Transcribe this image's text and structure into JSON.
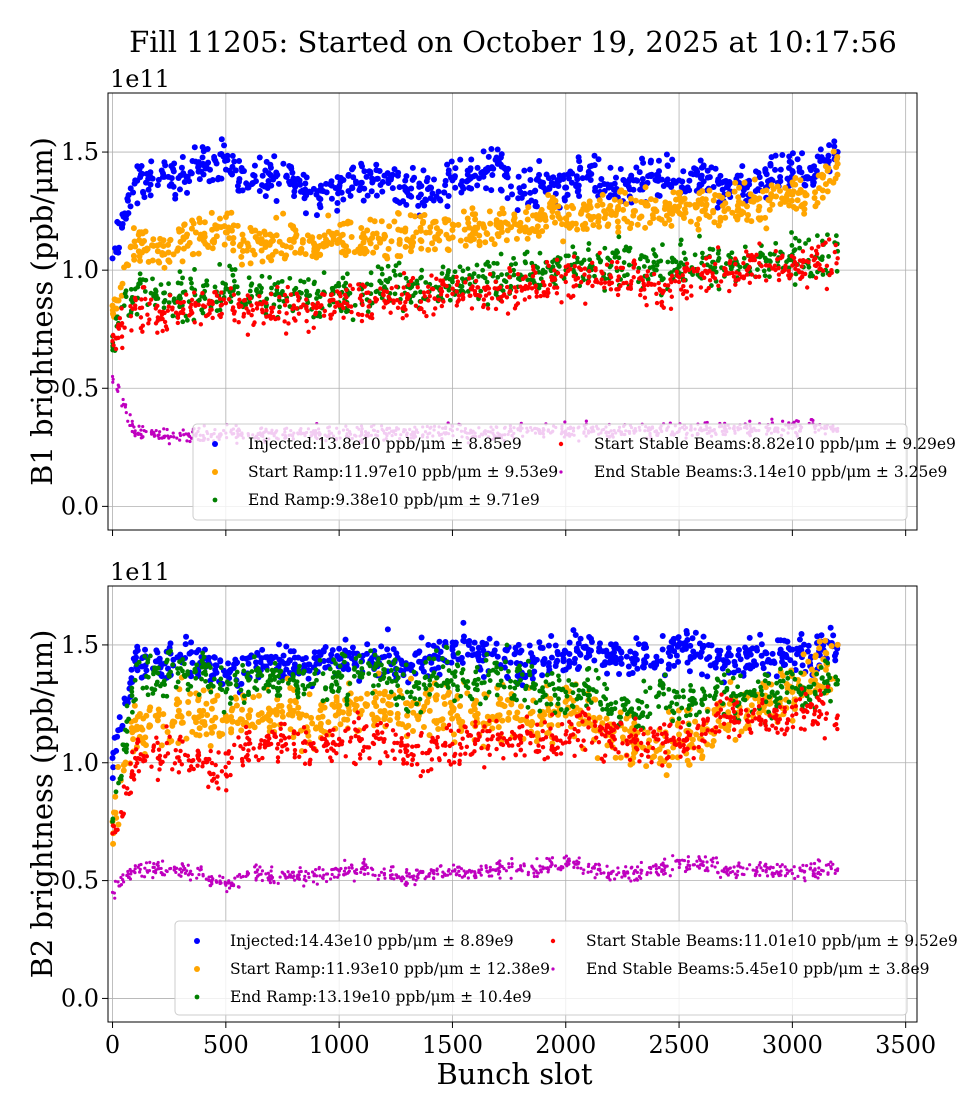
{
  "title": "Fill 11205: Started on October 19, 2025 at 10:17:56",
  "colors": {
    "Injected": "#0000ff",
    "Start Ramp": "#ffa500",
    "End Ramp": "#008000",
    "Start Stable Beams": "#ff0000",
    "End Stable Beams": "#bf00bf"
  },
  "chart_data": [
    {
      "type": "scatter",
      "ylabel": "B1 brightness (ppb/μm)",
      "xlabel": "",
      "y_offset_label": "1e11",
      "xlim": [
        -20,
        3550
      ],
      "ylim": [
        -0.1,
        1.75
      ],
      "xticks": [
        "0",
        "500",
        "1000",
        "1500",
        "2000",
        "2500",
        "3000",
        "3500"
      ],
      "yticks": [
        "0.0",
        "0.5",
        "1.0",
        "1.5"
      ],
      "grid": true,
      "legend_position": "lower-center",
      "x": [
        0,
        100,
        200,
        300,
        400,
        500,
        600,
        700,
        800,
        900,
        1000,
        1100,
        1200,
        1300,
        1400,
        1500,
        1600,
        1700,
        1800,
        1900,
        2000,
        2100,
        2200,
        2300,
        2400,
        2500,
        2600,
        2700,
        2800,
        2900,
        3000,
        3100,
        3200
      ],
      "series": [
        {
          "name": "Injected",
          "legend": "Injected:13.8e10 ppb/μm ± 8.85e9",
          "std": 0.0885,
          "values": [
            1.05,
            1.38,
            1.36,
            1.4,
            1.45,
            1.48,
            1.35,
            1.4,
            1.38,
            1.32,
            1.35,
            1.37,
            1.4,
            1.33,
            1.35,
            1.38,
            1.4,
            1.45,
            1.33,
            1.37,
            1.35,
            1.4,
            1.36,
            1.38,
            1.38,
            1.38,
            1.4,
            1.32,
            1.35,
            1.38,
            1.42,
            1.4,
            1.5
          ]
        },
        {
          "name": "Start Ramp",
          "legend": "Start Ramp:11.97e10 ppb/μm ± 9.53e9",
          "std": 0.0953,
          "values": [
            0.85,
            1.1,
            1.08,
            1.12,
            1.15,
            1.16,
            1.1,
            1.12,
            1.12,
            1.1,
            1.13,
            1.14,
            1.15,
            1.13,
            1.16,
            1.17,
            1.18,
            1.2,
            1.2,
            1.22,
            1.22,
            1.23,
            1.25,
            1.25,
            1.25,
            1.27,
            1.28,
            1.25,
            1.27,
            1.3,
            1.32,
            1.33,
            1.45
          ]
        },
        {
          "name": "End Ramp",
          "legend": "End Ramp:9.38e10 ppb/μm ± 9.71e9",
          "std": 0.0971,
          "values": [
            0.72,
            0.92,
            0.88,
            0.88,
            0.9,
            0.92,
            0.88,
            0.9,
            0.9,
            0.88,
            0.9,
            0.92,
            0.93,
            0.93,
            0.94,
            0.95,
            0.95,
            0.97,
            0.98,
            1.0,
            1.0,
            1.0,
            1.02,
            1.02,
            1.0,
            1.02,
            1.03,
            1.0,
            1.02,
            1.04,
            1.05,
            1.05,
            1.08
          ]
        },
        {
          "name": "Start Stable Beams",
          "legend": "Start Stable Beams:8.82e10 ppb/μm ± 9.29e9",
          "std": 0.0929,
          "values": [
            0.7,
            0.85,
            0.8,
            0.82,
            0.85,
            0.86,
            0.82,
            0.84,
            0.85,
            0.84,
            0.85,
            0.87,
            0.87,
            0.88,
            0.89,
            0.9,
            0.9,
            0.92,
            0.93,
            0.95,
            0.95,
            0.95,
            0.97,
            0.97,
            0.9,
            0.95,
            0.98,
            0.98,
            1.0,
            1.02,
            1.02,
            1.02,
            1.05
          ]
        },
        {
          "name": "End Stable Beams",
          "legend": "End Stable Beams:3.14e10 ppb/μm ± 3.25e9",
          "std": 0.0325,
          "values": [
            0.55,
            0.32,
            0.3,
            0.3,
            0.3,
            0.31,
            0.3,
            0.31,
            0.31,
            0.31,
            0.31,
            0.31,
            0.31,
            0.31,
            0.31,
            0.32,
            0.31,
            0.31,
            0.32,
            0.32,
            0.32,
            0.32,
            0.32,
            0.32,
            0.32,
            0.32,
            0.32,
            0.33,
            0.33,
            0.33,
            0.33,
            0.33,
            0.33
          ]
        }
      ]
    },
    {
      "type": "scatter",
      "ylabel": "B2 brightness (ppb/μm)",
      "xlabel": "Bunch slot",
      "y_offset_label": "1e11",
      "xlim": [
        -20,
        3550
      ],
      "ylim": [
        -0.1,
        1.75
      ],
      "xticks": [
        "0",
        "500",
        "1000",
        "1500",
        "2000",
        "2500",
        "3000",
        "3500"
      ],
      "yticks": [
        "0.0",
        "0.5",
        "1.0",
        "1.5"
      ],
      "grid": true,
      "legend_position": "lower-center",
      "x": [
        0,
        100,
        200,
        300,
        400,
        500,
        600,
        700,
        800,
        900,
        1000,
        1100,
        1200,
        1300,
        1400,
        1500,
        1600,
        1700,
        1800,
        1900,
        2000,
        2100,
        2200,
        2300,
        2400,
        2500,
        2600,
        2700,
        2800,
        2900,
        3000,
        3100,
        3200
      ],
      "series": [
        {
          "name": "Injected",
          "legend": "Injected:14.43e10 ppb/μm ± 8.89e9",
          "std": 0.0889,
          "values": [
            1.02,
            1.43,
            1.43,
            1.45,
            1.42,
            1.38,
            1.42,
            1.45,
            1.4,
            1.42,
            1.44,
            1.43,
            1.45,
            1.4,
            1.45,
            1.48,
            1.46,
            1.45,
            1.42,
            1.43,
            1.47,
            1.48,
            1.46,
            1.44,
            1.45,
            1.5,
            1.47,
            1.43,
            1.45,
            1.43,
            1.48,
            1.45,
            1.5
          ]
        },
        {
          "name": "Start Ramp",
          "legend": "Start Ramp:11.93e10 ppb/μm ± 12.38e9",
          "std": 0.1238,
          "values": [
            0.75,
            1.18,
            1.18,
            1.2,
            1.22,
            1.2,
            1.2,
            1.22,
            1.22,
            1.15,
            1.22,
            1.22,
            1.22,
            1.2,
            1.22,
            1.22,
            1.2,
            1.2,
            1.18,
            1.18,
            1.2,
            1.2,
            1.15,
            1.1,
            1.05,
            1.12,
            1.1,
            1.2,
            1.2,
            1.25,
            1.3,
            1.35,
            1.5
          ]
        },
        {
          "name": "End Ramp",
          "legend": "End Ramp:13.19e10 ppb/μm ± 10.4e9",
          "std": 0.104,
          "values": [
            0.75,
            1.35,
            1.38,
            1.4,
            1.38,
            1.3,
            1.35,
            1.35,
            1.35,
            1.35,
            1.38,
            1.4,
            1.38,
            1.3,
            1.35,
            1.38,
            1.35,
            1.38,
            1.35,
            1.3,
            1.3,
            1.32,
            1.25,
            1.2,
            1.28,
            1.28,
            1.25,
            1.3,
            1.3,
            1.28,
            1.32,
            1.3,
            1.35
          ]
        },
        {
          "name": "Start Stable Beams",
          "legend": "Start Stable Beams:11.01e10 ppb/μm ± 9.52e9",
          "std": 0.0952,
          "values": [
            0.7,
            1.02,
            1.02,
            1.05,
            1.0,
            0.95,
            1.08,
            1.08,
            1.08,
            1.05,
            1.1,
            1.1,
            1.1,
            1.05,
            1.05,
            1.08,
            1.08,
            1.1,
            1.1,
            1.1,
            1.12,
            1.15,
            1.08,
            1.1,
            1.1,
            1.1,
            1.12,
            1.2,
            1.18,
            1.2,
            1.2,
            1.22,
            1.2
          ]
        },
        {
          "name": "End Stable Beams",
          "legend": "End Stable Beams:5.45e10 ppb/μm ± 3.8e9",
          "std": 0.038,
          "values": [
            0.45,
            0.55,
            0.55,
            0.55,
            0.52,
            0.48,
            0.53,
            0.52,
            0.52,
            0.52,
            0.54,
            0.55,
            0.53,
            0.52,
            0.53,
            0.54,
            0.53,
            0.55,
            0.55,
            0.55,
            0.57,
            0.56,
            0.53,
            0.53,
            0.55,
            0.58,
            0.57,
            0.55,
            0.55,
            0.55,
            0.53,
            0.55,
            0.55
          ]
        }
      ]
    }
  ]
}
